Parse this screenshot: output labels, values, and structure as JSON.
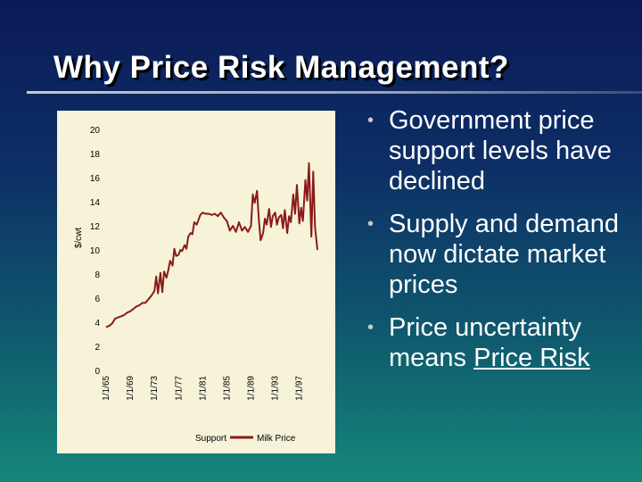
{
  "slide": {
    "title": "Why Price Risk Management?",
    "bullets": [
      {
        "text": "Government price support levels have declined"
      },
      {
        "text": "Supply and demand now dictate market prices"
      },
      {
        "text_before": "Price uncertainty means ",
        "text_underlined": "Price Risk"
      }
    ]
  },
  "chart_data": {
    "type": "line",
    "title": "",
    "xlabel": "",
    "ylabel": "$/cwt",
    "ylim": [
      0,
      20
    ],
    "yticks": [
      0,
      2,
      4,
      6,
      8,
      10,
      12,
      14,
      16,
      18,
      20
    ],
    "xticks": [
      "1/1/65",
      "1/1/69",
      "1/1/73",
      "1/1/77",
      "1/1/81",
      "1/1/85",
      "1/1/89",
      "1/1/93",
      "1/1/97"
    ],
    "legend": {
      "placement": "bottom",
      "entries": [
        "Support",
        "Milk Price"
      ]
    },
    "colors": {
      "Milk Price": "#8b1a1a",
      "Support": "#8b1a1a"
    },
    "series": [
      {
        "name": "Milk Price",
        "x": [
          1965.0,
          1965.5,
          1966.0,
          1966.5,
          1967.0,
          1967.5,
          1968.0,
          1968.5,
          1969.0,
          1969.5,
          1970.0,
          1970.5,
          1971.0,
          1971.5,
          1972.0,
          1972.5,
          1973.0,
          1973.3,
          1973.6,
          1974.0,
          1974.3,
          1974.6,
          1975.0,
          1975.3,
          1975.6,
          1976.0,
          1976.3,
          1976.6,
          1977.0,
          1977.3,
          1977.6,
          1978.0,
          1978.3,
          1978.6,
          1979.0,
          1979.3,
          1979.6,
          1980.0,
          1980.3,
          1980.6,
          1981.0,
          1981.5,
          1982.0,
          1982.5,
          1983.0,
          1983.5,
          1984.0,
          1984.5,
          1985.0,
          1985.5,
          1986.0,
          1986.5,
          1987.0,
          1987.5,
          1988.0,
          1988.5,
          1989.0,
          1989.3,
          1989.6,
          1990.0,
          1990.3,
          1990.6,
          1991.0,
          1991.3,
          1991.6,
          1992.0,
          1992.3,
          1992.6,
          1993.0,
          1993.3,
          1993.6,
          1994.0,
          1994.3,
          1994.6,
          1995.0,
          1995.3,
          1995.6,
          1996.0,
          1996.3,
          1996.6,
          1997.0,
          1997.3,
          1997.6,
          1998.0,
          1998.3,
          1998.6,
          1999.0,
          1999.3,
          1999.6,
          2000.0
        ],
        "values": [
          3.6,
          3.7,
          3.9,
          4.3,
          4.4,
          4.5,
          4.6,
          4.8,
          4.9,
          5.1,
          5.3,
          5.4,
          5.6,
          5.6,
          5.9,
          6.2,
          6.6,
          7.8,
          6.4,
          8.1,
          6.5,
          8.2,
          7.7,
          8.3,
          9.1,
          8.7,
          10.1,
          9.5,
          9.6,
          10.0,
          9.9,
          10.4,
          10.1,
          11.1,
          11.4,
          11.3,
          12.3,
          12.1,
          12.5,
          12.9,
          13.1,
          13.0,
          13.0,
          12.9,
          13.0,
          12.8,
          13.1,
          12.7,
          12.4,
          11.6,
          12.0,
          11.5,
          12.3,
          11.6,
          11.9,
          11.5,
          12.0,
          14.6,
          13.9,
          14.9,
          12.5,
          10.8,
          11.4,
          12.6,
          12.1,
          13.4,
          11.9,
          12.8,
          13.1,
          12.1,
          12.7,
          12.9,
          11.8,
          13.3,
          11.4,
          12.8,
          12.3,
          14.6,
          13.0,
          15.4,
          12.2,
          13.5,
          12.4,
          15.8,
          14.1,
          17.2,
          11.1,
          16.5,
          11.9,
          10.0
        ]
      },
      {
        "name": "Support",
        "values": []
      }
    ]
  }
}
